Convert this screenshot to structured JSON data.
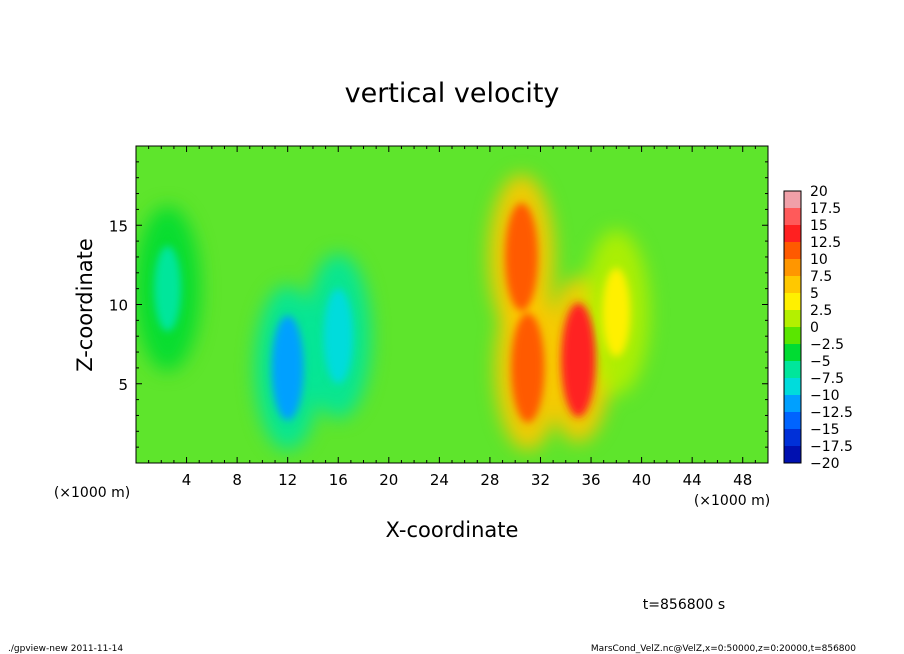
{
  "chart_data": {
    "type": "heatmap",
    "title": "vertical velocity",
    "xlabel": "X-coordinate",
    "ylabel": "Z-coordinate",
    "x_unit": "(×1000 m)",
    "y_unit": "(×1000 m)",
    "xlim": [
      0,
      50
    ],
    "ylim": [
      0,
      20
    ],
    "x_ticks": [
      "4",
      "8",
      "12",
      "16",
      "20",
      "24",
      "28",
      "32",
      "36",
      "40",
      "44",
      "48"
    ],
    "y_ticks": [
      "5",
      "10",
      "15"
    ],
    "colorbar": {
      "levels": [
        "20",
        "17.5",
        "15",
        "12.5",
        "10",
        "7.5",
        "5",
        "2.5",
        "0",
        "−2.5",
        "−5",
        "−7.5",
        "−10",
        "−12.5",
        "−15",
        "−17.5",
        "−20"
      ],
      "colors": [
        "#f0a0a8",
        "#ff5a5a",
        "#ff2020",
        "#ff5a00",
        "#ff9600",
        "#ffc800",
        "#fff000",
        "#b4f000",
        "#5ae600",
        "#00dc32",
        "#00e69b",
        "#00dcdc",
        "#00a0ff",
        "#0064ff",
        "#0030d8",
        "#0010b0",
        "#5a1eaa"
      ]
    },
    "features": [
      {
        "x": 2.5,
        "z": 11,
        "value": -5
      },
      {
        "x": 12,
        "z": 6,
        "value": -11
      },
      {
        "x": 16,
        "z": 8,
        "value": -8
      },
      {
        "x": 30.5,
        "z": 13,
        "value": 12
      },
      {
        "x": 31,
        "z": 6,
        "value": 12.5
      },
      {
        "x": 35,
        "z": 6.5,
        "value": 14
      },
      {
        "x": 38,
        "z": 9.5,
        "value": 6
      }
    ],
    "timestamp": "t=856800 s"
  },
  "footer": {
    "left": "./gpview-new   2011-11-14",
    "right": "MarsCond_VelZ.nc@VelZ,x=0:50000,z=0:20000,t=856800"
  }
}
